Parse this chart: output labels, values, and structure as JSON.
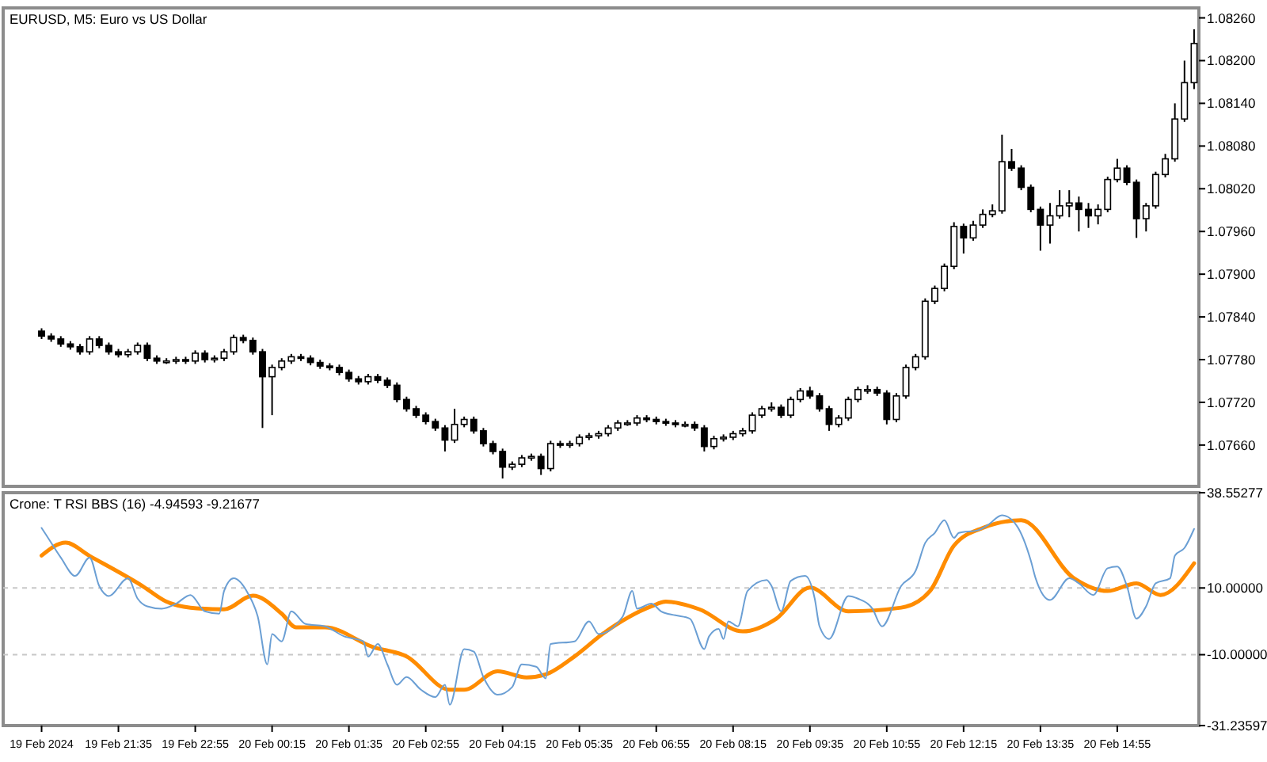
{
  "chart_data": [
    {
      "type": "candlestick",
      "title": "EURUSD, M5:  Euro vs US Dollar",
      "color": "#000000",
      "tick_labels": "y",
      "xlim": [
        "2024-02-19T19:35",
        "2024-02-20T16:20"
      ],
      "ylim": [
        1.07602,
        1.08274
      ],
      "yticks": [
        {
          "value": 1.0766,
          "label": "1.07660"
        },
        {
          "value": 1.0772,
          "label": "1.07720"
        },
        {
          "value": 1.0778,
          "label": "1.07780"
        },
        {
          "value": 1.0784,
          "label": "1.07840"
        },
        {
          "value": 1.079,
          "label": "1.07900"
        },
        {
          "value": 1.0796,
          "label": "1.07960"
        },
        {
          "value": 1.0802,
          "label": "1.08020"
        },
        {
          "value": 1.0808,
          "label": "1.08080"
        },
        {
          "value": 1.0814,
          "label": "1.08140"
        },
        {
          "value": 1.082,
          "label": "1.08200"
        },
        {
          "value": 1.0826,
          "label": "1.08260"
        }
      ],
      "x": [
        "2024-02-19T20:15",
        "2024-02-19T20:25",
        "2024-02-19T20:35",
        "2024-02-19T20:45",
        "2024-02-19T20:55",
        "2024-02-19T21:05",
        "2024-02-19T21:15",
        "2024-02-19T21:25",
        "2024-02-19T21:35",
        "2024-02-19T21:45",
        "2024-02-19T21:55",
        "2024-02-19T22:05",
        "2024-02-19T22:15",
        "2024-02-19T22:25",
        "2024-02-19T22:35",
        "2024-02-19T22:45",
        "2024-02-19T22:55",
        "2024-02-19T23:05",
        "2024-02-19T23:15",
        "2024-02-19T23:25",
        "2024-02-19T23:35",
        "2024-02-19T23:45",
        "2024-02-19T23:55",
        "2024-02-20T00:05",
        "2024-02-20T00:15",
        "2024-02-20T00:25",
        "2024-02-20T00:35",
        "2024-02-20T00:45",
        "2024-02-20T00:55",
        "2024-02-20T01:05",
        "2024-02-20T01:15",
        "2024-02-20T01:25",
        "2024-02-20T01:35",
        "2024-02-20T01:45",
        "2024-02-20T01:55",
        "2024-02-20T02:05",
        "2024-02-20T02:15",
        "2024-02-20T02:25",
        "2024-02-20T02:35",
        "2024-02-20T02:45",
        "2024-02-20T02:55",
        "2024-02-20T03:05",
        "2024-02-20T03:15",
        "2024-02-20T03:25",
        "2024-02-20T03:35",
        "2024-02-20T03:45",
        "2024-02-20T03:55",
        "2024-02-20T04:05",
        "2024-02-20T04:15",
        "2024-02-20T04:25",
        "2024-02-20T04:35",
        "2024-02-20T04:45",
        "2024-02-20T04:55",
        "2024-02-20T05:05",
        "2024-02-20T05:15",
        "2024-02-20T05:25",
        "2024-02-20T05:35",
        "2024-02-20T05:45",
        "2024-02-20T05:55",
        "2024-02-20T06:05",
        "2024-02-20T06:15",
        "2024-02-20T06:25",
        "2024-02-20T06:35",
        "2024-02-20T06:45",
        "2024-02-20T06:55",
        "2024-02-20T07:05",
        "2024-02-20T07:15",
        "2024-02-20T07:25",
        "2024-02-20T07:35",
        "2024-02-20T07:45",
        "2024-02-20T07:55",
        "2024-02-20T08:05",
        "2024-02-20T08:15",
        "2024-02-20T08:25",
        "2024-02-20T08:35",
        "2024-02-20T08:45",
        "2024-02-20T08:55",
        "2024-02-20T09:05",
        "2024-02-20T09:15",
        "2024-02-20T09:25",
        "2024-02-20T09:35",
        "2024-02-20T09:45",
        "2024-02-20T09:55",
        "2024-02-20T10:05",
        "2024-02-20T10:15",
        "2024-02-20T10:25",
        "2024-02-20T10:35",
        "2024-02-20T10:45",
        "2024-02-20T10:55",
        "2024-02-20T11:05",
        "2024-02-20T11:15",
        "2024-02-20T11:25",
        "2024-02-20T11:35",
        "2024-02-20T11:45",
        "2024-02-20T11:55",
        "2024-02-20T12:05",
        "2024-02-20T12:15",
        "2024-02-20T12:25",
        "2024-02-20T12:35",
        "2024-02-20T12:45",
        "2024-02-20T12:55",
        "2024-02-20T13:05",
        "2024-02-20T13:15",
        "2024-02-20T13:25",
        "2024-02-20T13:35",
        "2024-02-20T13:45",
        "2024-02-20T13:55",
        "2024-02-20T14:05",
        "2024-02-20T14:15",
        "2024-02-20T14:25",
        "2024-02-20T14:35",
        "2024-02-20T14:45",
        "2024-02-20T14:55",
        "2024-02-20T15:05",
        "2024-02-20T15:15",
        "2024-02-20T15:25",
        "2024-02-20T15:35",
        "2024-02-20T15:45",
        "2024-02-20T15:55",
        "2024-02-20T16:05",
        "2024-02-20T16:15"
      ],
      "ohlc": [
        [
          1.0782,
          1.07824,
          1.07809,
          1.07813
        ],
        [
          1.07813,
          1.07817,
          1.07805,
          1.07809
        ],
        [
          1.07809,
          1.07813,
          1.07798,
          1.07802
        ],
        [
          1.07802,
          1.07806,
          1.07794,
          1.07798
        ],
        [
          1.07798,
          1.07802,
          1.07787,
          1.07791
        ],
        [
          1.07791,
          1.07813,
          1.07787,
          1.07809
        ],
        [
          1.07809,
          1.07813,
          1.07796,
          1.078
        ],
        [
          1.078,
          1.07804,
          1.07787,
          1.07791
        ],
        [
          1.07791,
          1.07795,
          1.07783,
          1.07787
        ],
        [
          1.07787,
          1.07795,
          1.07783,
          1.07791
        ],
        [
          1.07791,
          1.07804,
          1.07787,
          1.078
        ],
        [
          1.078,
          1.07804,
          1.07778,
          1.07782
        ],
        [
          1.07782,
          1.07786,
          1.07774,
          1.07778
        ],
        [
          1.07778,
          1.07782,
          1.07774,
          1.07778
        ],
        [
          1.07778,
          1.07784,
          1.07774,
          1.0778
        ],
        [
          1.0778,
          1.07784,
          1.07774,
          1.07778
        ],
        [
          1.07778,
          1.07793,
          1.07774,
          1.07789
        ],
        [
          1.07789,
          1.07793,
          1.07776,
          1.0778
        ],
        [
          1.0778,
          1.07786,
          1.07776,
          1.07782
        ],
        [
          1.07782,
          1.07795,
          1.07778,
          1.07791
        ],
        [
          1.07791,
          1.07815,
          1.07787,
          1.07811
        ],
        [
          1.07811,
          1.07815,
          1.07803,
          1.07807
        ],
        [
          1.07807,
          1.07811,
          1.07787,
          1.07791
        ],
        [
          1.07791,
          1.07795,
          1.07684,
          1.07756
        ],
        [
          1.07756,
          1.07773,
          1.07702,
          1.07769
        ],
        [
          1.07769,
          1.07782,
          1.07765,
          1.07778
        ],
        [
          1.07778,
          1.07788,
          1.07774,
          1.07784
        ],
        [
          1.07784,
          1.07788,
          1.07778,
          1.07782
        ],
        [
          1.07782,
          1.07786,
          1.07772,
          1.07776
        ],
        [
          1.07776,
          1.0778,
          1.07767,
          1.07771
        ],
        [
          1.07771,
          1.07775,
          1.07765,
          1.07769
        ],
        [
          1.07769,
          1.07773,
          1.07758,
          1.07762
        ],
        [
          1.07762,
          1.07766,
          1.07749,
          1.07753
        ],
        [
          1.07753,
          1.07757,
          1.07745,
          1.07749
        ],
        [
          1.07749,
          1.0776,
          1.07745,
          1.07756
        ],
        [
          1.07756,
          1.0776,
          1.07747,
          1.07751
        ],
        [
          1.07751,
          1.07755,
          1.0774,
          1.07744
        ],
        [
          1.07744,
          1.07748,
          1.0772,
          1.07724
        ],
        [
          1.07724,
          1.07728,
          1.07707,
          1.07711
        ],
        [
          1.07711,
          1.07715,
          1.07698,
          1.07702
        ],
        [
          1.07702,
          1.07706,
          1.07689,
          1.07693
        ],
        [
          1.07693,
          1.07697,
          1.0768,
          1.07684
        ],
        [
          1.07684,
          1.07688,
          1.07651,
          1.07667
        ],
        [
          1.07667,
          1.07711,
          1.07663,
          1.07689
        ],
        [
          1.07689,
          1.077,
          1.07685,
          1.07696
        ],
        [
          1.07696,
          1.077,
          1.07676,
          1.0768
        ],
        [
          1.0768,
          1.07684,
          1.07658,
          1.07662
        ],
        [
          1.07662,
          1.07666,
          1.07647,
          1.07651
        ],
        [
          1.07651,
          1.07655,
          1.07613,
          1.07629
        ],
        [
          1.07629,
          1.07637,
          1.07625,
          1.07633
        ],
        [
          1.07633,
          1.07646,
          1.07629,
          1.07642
        ],
        [
          1.07642,
          1.07648,
          1.07638,
          1.07644
        ],
        [
          1.07644,
          1.07648,
          1.07618,
          1.07627
        ],
        [
          1.07627,
          1.07666,
          1.07623,
          1.07662
        ],
        [
          1.07662,
          1.07666,
          1.07656,
          1.0766
        ],
        [
          1.0766,
          1.07666,
          1.07656,
          1.07662
        ],
        [
          1.07662,
          1.07675,
          1.07658,
          1.07671
        ],
        [
          1.07671,
          1.07677,
          1.07667,
          1.07673
        ],
        [
          1.07673,
          1.0768,
          1.07669,
          1.07676
        ],
        [
          1.07676,
          1.07688,
          1.07672,
          1.07684
        ],
        [
          1.07684,
          1.07695,
          1.0768,
          1.07691
        ],
        [
          1.07691,
          1.07695,
          1.07687,
          1.07691
        ],
        [
          1.07691,
          1.07702,
          1.07687,
          1.07698
        ],
        [
          1.07698,
          1.07702,
          1.07692,
          1.07696
        ],
        [
          1.07696,
          1.077,
          1.07689,
          1.07693
        ],
        [
          1.07693,
          1.07697,
          1.07687,
          1.07691
        ],
        [
          1.07691,
          1.07695,
          1.07685,
          1.07689
        ],
        [
          1.07689,
          1.07693,
          1.07685,
          1.07689
        ],
        [
          1.07689,
          1.07693,
          1.0768,
          1.07684
        ],
        [
          1.07684,
          1.07688,
          1.07651,
          1.07658
        ],
        [
          1.07658,
          1.07673,
          1.07654,
          1.07669
        ],
        [
          1.07669,
          1.07675,
          1.07665,
          1.07671
        ],
        [
          1.07671,
          1.0768,
          1.07667,
          1.07676
        ],
        [
          1.07676,
          1.07684,
          1.07672,
          1.0768
        ],
        [
          1.0768,
          1.07706,
          1.07676,
          1.07702
        ],
        [
          1.07702,
          1.07715,
          1.07698,
          1.07711
        ],
        [
          1.07711,
          1.0772,
          1.07707,
          1.07713
        ],
        [
          1.07713,
          1.07717,
          1.07698,
          1.07702
        ],
        [
          1.07702,
          1.07728,
          1.07698,
          1.07724
        ],
        [
          1.07724,
          1.0774,
          1.0772,
          1.07736
        ],
        [
          1.07736,
          1.07742,
          1.07725,
          1.07729
        ],
        [
          1.07729,
          1.07733,
          1.07707,
          1.07711
        ],
        [
          1.07711,
          1.07715,
          1.0768,
          1.07689
        ],
        [
          1.07689,
          1.07702,
          1.07685,
          1.07698
        ],
        [
          1.07698,
          1.07728,
          1.07694,
          1.07724
        ],
        [
          1.07724,
          1.07742,
          1.0772,
          1.07738
        ],
        [
          1.07738,
          1.07744,
          1.07732,
          1.07738
        ],
        [
          1.07738,
          1.07742,
          1.07729,
          1.07733
        ],
        [
          1.07733,
          1.07737,
          1.07689,
          1.07696
        ],
        [
          1.07696,
          1.07733,
          1.07692,
          1.07729
        ],
        [
          1.07729,
          1.07773,
          1.07725,
          1.07769
        ],
        [
          1.07769,
          1.07788,
          1.07765,
          1.07784
        ],
        [
          1.07784,
          1.07866,
          1.0778,
          1.07862
        ],
        [
          1.07862,
          1.07884,
          1.07858,
          1.0788
        ],
        [
          1.0788,
          1.07915,
          1.07876,
          1.07911
        ],
        [
          1.07911,
          1.07973,
          1.07907,
          1.07967
        ],
        [
          1.07967,
          1.07971,
          1.07929,
          1.07951
        ],
        [
          1.07951,
          1.07975,
          1.07947,
          1.07969
        ],
        [
          1.07969,
          1.07991,
          1.07965,
          1.07984
        ],
        [
          1.07984,
          1.07998,
          1.0798,
          1.07989
        ],
        [
          1.07989,
          1.08096,
          1.07985,
          1.08058
        ],
        [
          1.08058,
          1.08076,
          1.08045,
          1.08049
        ],
        [
          1.08049,
          1.08053,
          1.08018,
          1.08022
        ],
        [
          1.08022,
          1.08026,
          1.07987,
          1.07991
        ],
        [
          1.07991,
          1.07995,
          1.07933,
          1.07969
        ],
        [
          1.07969,
          1.08,
          1.07943,
          1.07982
        ],
        [
          1.07982,
          1.08018,
          1.07978,
          1.07996
        ],
        [
          1.07996,
          1.08018,
          1.0798,
          1.08
        ],
        [
          1.08,
          1.08009,
          1.0796,
          1.07991
        ],
        [
          1.07991,
          1.08,
          1.07965,
          1.07982
        ],
        [
          1.07982,
          1.07998,
          1.0797,
          1.07991
        ],
        [
          1.07991,
          1.08037,
          1.07987,
          1.08033
        ],
        [
          1.08033,
          1.08062,
          1.08029,
          1.08049
        ],
        [
          1.08049,
          1.08053,
          1.08025,
          1.08029
        ],
        [
          1.08029,
          1.08033,
          1.07951,
          1.07978
        ],
        [
          1.07978,
          1.08,
          1.0796,
          1.07996
        ],
        [
          1.07996,
          1.08044,
          1.07992,
          1.0804
        ],
        [
          1.0804,
          1.08069,
          1.08036,
          1.08062
        ],
        [
          1.08062,
          1.0814,
          1.08058,
          1.08118
        ],
        [
          1.08118,
          1.082,
          1.08114,
          1.08169
        ],
        [
          1.08169,
          1.08244,
          1.0816,
          1.08224
        ]
      ]
    },
    {
      "type": "line",
      "title": "Crone: T RSI BBS (16) -4.94593 -9.21677",
      "xlim": [
        "2024-02-19T19:35",
        "2024-02-20T16:20"
      ],
      "xticks": [
        {
          "value": "2024-02-19T20:15",
          "label": "19 Feb 2024"
        },
        {
          "value": "2024-02-19T21:35",
          "label": "19 Feb 21:35"
        },
        {
          "value": "2024-02-19T22:55",
          "label": "19 Feb 22:55"
        },
        {
          "value": "2024-02-20T00:15",
          "label": "20 Feb 00:15"
        },
        {
          "value": "2024-02-20T01:35",
          "label": "20 Feb 01:35"
        },
        {
          "value": "2024-02-20T02:55",
          "label": "20 Feb 02:55"
        },
        {
          "value": "2024-02-20T04:15",
          "label": "20 Feb 04:15"
        },
        {
          "value": "2024-02-20T05:35",
          "label": "20 Feb 05:35"
        },
        {
          "value": "2024-02-20T06:55",
          "label": "20 Feb 06:55"
        },
        {
          "value": "2024-02-20T08:15",
          "label": "20 Feb 08:15"
        },
        {
          "value": "2024-02-20T09:35",
          "label": "20 Feb 09:35"
        },
        {
          "value": "2024-02-20T10:55",
          "label": "20 Feb 10:55"
        },
        {
          "value": "2024-02-20T12:15",
          "label": "20 Feb 12:15"
        },
        {
          "value": "2024-02-20T13:35",
          "label": "20 Feb 13:35"
        },
        {
          "value": "2024-02-20T14:55",
          "label": "20 Feb 14:55"
        }
      ],
      "ylim": [
        -31.23597,
        38.55277
      ],
      "yticks": [
        {
          "value": -31.23597,
          "label": "-31.23597"
        },
        {
          "value": -10,
          "label": "-10.00000"
        },
        {
          "value": 10,
          "label": "10.00000"
        },
        {
          "value": 38.55277,
          "label": "38.55277"
        }
      ],
      "ref_lines": [
        {
          "axis": "y",
          "value": 10,
          "color": "#c8c8c8",
          "line_style": "dashed"
        },
        {
          "axis": "y",
          "value": -10,
          "color": "#c8c8c8",
          "line_style": "dashed"
        }
      ],
      "series": [
        {
          "color": "#6b9fd4",
          "x": [
            "2024-02-19T20:15",
            "2024-02-19T20:20",
            "2024-02-19T20:35",
            "2024-02-19T20:50",
            "2024-02-19T21:05",
            "2024-02-19T21:15",
            "2024-02-19T21:25",
            "2024-02-19T21:45",
            "2024-02-19T21:55",
            "2024-02-19T22:05",
            "2024-02-19T22:20",
            "2024-02-19T22:35",
            "2024-02-19T22:50",
            "2024-02-19T23:05",
            "2024-02-19T23:20",
            "2024-02-19T23:25",
            "2024-02-19T23:35",
            "2024-02-19T23:50",
            "2024-02-20T00:00",
            "2024-02-20T00:10",
            "2024-02-20T00:15",
            "2024-02-20T00:25",
            "2024-02-20T00:35",
            "2024-02-20T00:50",
            "2024-02-20T01:10",
            "2024-02-20T01:30",
            "2024-02-20T01:50",
            "2024-02-20T01:55",
            "2024-02-20T02:05",
            "2024-02-20T02:15",
            "2024-02-20T02:25",
            "2024-02-20T02:35",
            "2024-02-20T02:50",
            "2024-02-20T03:05",
            "2024-02-20T03:15",
            "2024-02-20T03:20",
            "2024-02-20T03:35",
            "2024-02-20T03:45",
            "2024-02-20T03:55",
            "2024-02-20T04:10",
            "2024-02-20T04:25",
            "2024-02-20T04:35",
            "2024-02-20T04:50",
            "2024-02-20T05:00",
            "2024-02-20T05:05",
            "2024-02-20T05:30",
            "2024-02-20T05:45",
            "2024-02-20T05:55",
            "2024-02-20T06:20",
            "2024-02-20T06:30",
            "2024-02-20T06:35",
            "2024-02-20T06:50",
            "2024-02-20T07:00",
            "2024-02-20T07:15",
            "2024-02-20T07:30",
            "2024-02-20T07:45",
            "2024-02-20T07:50",
            "2024-02-20T08:00",
            "2024-02-20T08:05",
            "2024-02-20T08:10",
            "2024-02-20T08:20",
            "2024-02-20T08:30",
            "2024-02-20T08:50",
            "2024-02-20T08:55",
            "2024-02-20T09:05",
            "2024-02-20T09:15",
            "2024-02-20T09:30",
            "2024-02-20T09:40",
            "2024-02-20T09:45",
            "2024-02-20T09:55",
            "2024-02-20T10:15",
            "2024-02-20T10:25",
            "2024-02-20T10:40",
            "2024-02-20T10:50",
            "2024-02-20T11:10",
            "2024-02-20T11:25",
            "2024-02-20T11:35",
            "2024-02-20T11:45",
            "2024-02-20T11:55",
            "2024-02-20T12:05",
            "2024-02-20T12:10",
            "2024-02-20T12:30",
            "2024-02-20T12:40",
            "2024-02-20T12:55",
            "2024-02-20T13:10",
            "2024-02-20T13:25",
            "2024-02-20T13:30",
            "2024-02-20T13:45",
            "2024-02-20T14:05",
            "2024-02-20T14:15",
            "2024-02-20T14:30",
            "2024-02-20T14:45",
            "2024-02-20T14:55",
            "2024-02-20T15:05",
            "2024-02-20T15:15",
            "2024-02-20T15:25",
            "2024-02-20T15:35",
            "2024-02-20T15:50",
            "2024-02-20T15:55",
            "2024-02-20T16:05",
            "2024-02-20T16:15"
          ],
          "values": [
            28.0,
            25.8,
            19.1,
            13.6,
            19.1,
            10.6,
            7.6,
            12.9,
            6.8,
            4.5,
            3.8,
            5.3,
            7.9,
            3.0,
            2.3,
            9.1,
            12.9,
            8.3,
            1.5,
            -12.9,
            -3.8,
            -6.0,
            3.0,
            -0.8,
            -1.5,
            -4.5,
            -6.0,
            -10.6,
            -6.8,
            -12.9,
            -19.0,
            -16.7,
            -20.5,
            -22.7,
            -19.0,
            -25.0,
            -8.3,
            -9.1,
            -16.7,
            -22.0,
            -19.7,
            -12.9,
            -13.6,
            -17.1,
            -6.8,
            -6.0,
            0,
            -3.8,
            1.4,
            9.1,
            3.8,
            5.3,
            3.0,
            1.8,
            0.8,
            -8.3,
            -4.5,
            -2.3,
            -5.3,
            0,
            -1.5,
            9.1,
            12.4,
            10.6,
            3.0,
            12.1,
            13.6,
            6.8,
            -1.5,
            -5.3,
            7.6,
            6.8,
            3.8,
            -1.5,
            10.6,
            15.1,
            23.5,
            26.5,
            30.3,
            25.0,
            26.5,
            27.3,
            28.8,
            31.8,
            28.8,
            18.2,
            12.9,
            6.4,
            12.9,
            11.4,
            7.9,
            15.9,
            16.4,
            10.6,
            0.8,
            4.5,
            11.4,
            12.9,
            19.7,
            22.0,
            27.7
          ]
        },
        {
          "color": "#ff8c00",
          "x": [
            "2024-02-19T20:15",
            "2024-02-19T20:40",
            "2024-02-19T21:05",
            "2024-02-19T22:00",
            "2024-02-19T22:25",
            "2024-02-19T22:50",
            "2024-02-19T23:25",
            "2024-02-19T23:55",
            "2024-02-20T00:25",
            "2024-02-20T00:40",
            "2024-02-20T01:10",
            "2024-02-20T02:00",
            "2024-02-20T02:35",
            "2024-02-20T03:20",
            "2024-02-20T03:35",
            "2024-02-20T04:10",
            "2024-02-20T04:40",
            "2024-02-20T05:00",
            "2024-02-20T05:30",
            "2024-02-20T06:00",
            "2024-02-20T06:50",
            "2024-02-20T07:05",
            "2024-02-20T07:40",
            "2024-02-20T08:25",
            "2024-02-20T09:00",
            "2024-02-20T09:35",
            "2024-02-20T10:15",
            "2024-02-20T11:10",
            "2024-02-20T11:40",
            "2024-02-20T12:05",
            "2024-02-20T12:35",
            "2024-02-20T13:15",
            "2024-02-20T14:10",
            "2024-02-20T14:45",
            "2024-02-20T15:15",
            "2024-02-20T15:40",
            "2024-02-20T16:15"
          ],
          "values": [
            19.7,
            23.6,
            19.6,
            10.6,
            5.9,
            4.1,
            3.6,
            7.7,
            2.3,
            -1.8,
            -1.8,
            -7.7,
            -10.5,
            -20.5,
            -20.5,
            -15,
            -16.8,
            -15.9,
            -10.5,
            -3.6,
            4.5,
            5.9,
            3.6,
            -3.0,
            0.8,
            10.1,
            3.0,
            4.1,
            9.1,
            22.7,
            28.0,
            30.3,
            12.9,
            9.1,
            11.4,
            7.9,
            17.4
          ]
        }
      ]
    }
  ]
}
